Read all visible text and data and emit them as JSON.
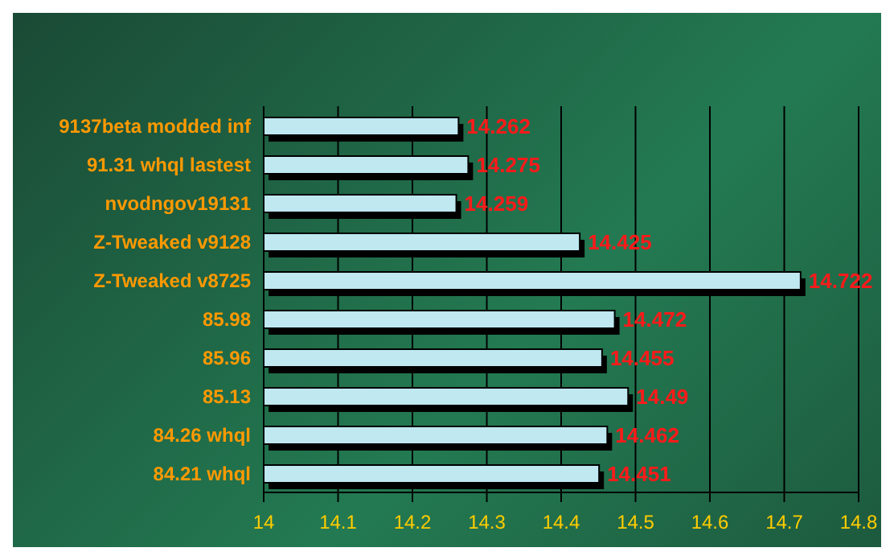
{
  "chart_data": {
    "type": "bar",
    "orientation": "horizontal",
    "categories": [
      "9137beta modded inf",
      "91.31 whql   lastest",
      "nvodngov19131",
      "Z-Tweaked v9128",
      "Z-Tweaked v8725",
      "85.98",
      "85.96",
      "85.13",
      "84.26 whql",
      "84.21 whql"
    ],
    "values": [
      14.262,
      14.275,
      14.259,
      14.425,
      14.722,
      14.472,
      14.455,
      14.49,
      14.462,
      14.451
    ],
    "color": "#bfe8f0",
    "xlim": [
      14,
      14.8
    ],
    "xticks": [
      14,
      14.1,
      14.2,
      14.3,
      14.4,
      14.5,
      14.6,
      14.7,
      14.8
    ],
    "grid": "x",
    "data_labels": true,
    "legend": false
  }
}
